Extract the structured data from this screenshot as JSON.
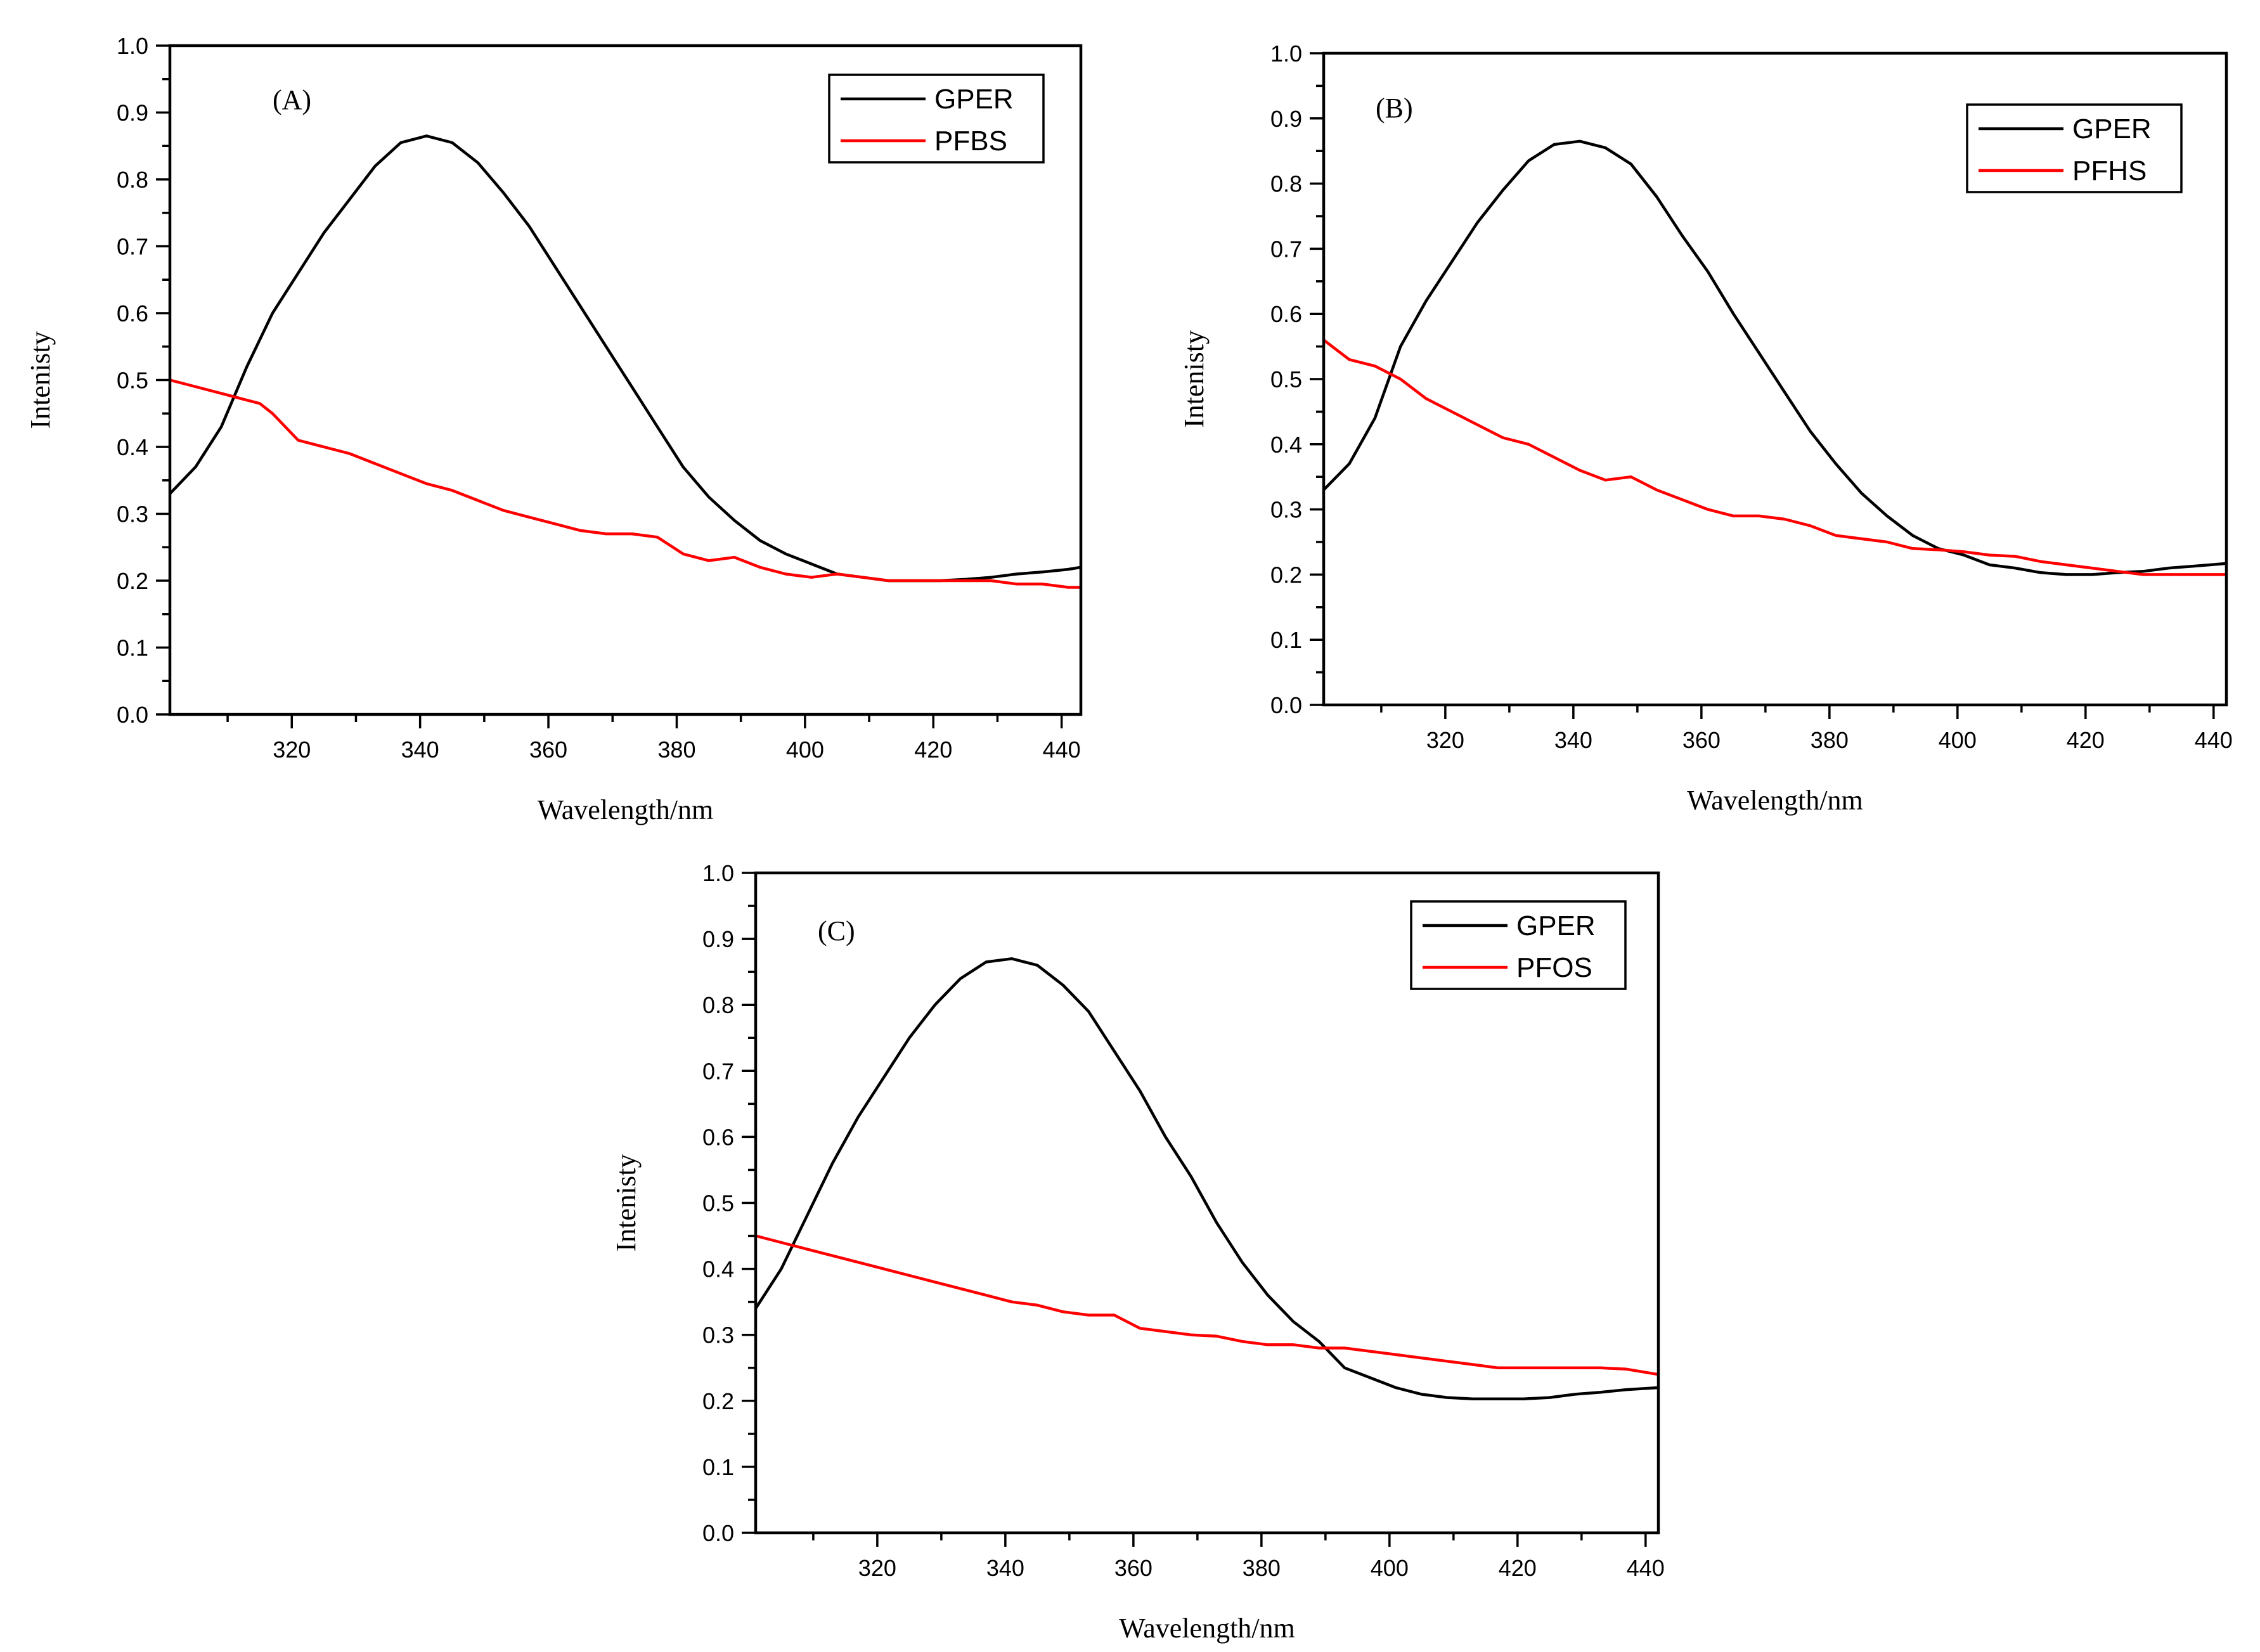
{
  "chart_data": [
    {
      "type": "line",
      "panel": "(A)",
      "xlabel": "Wavelength/nm",
      "ylabel": "Intenisty",
      "xlim": [
        301,
        443
      ],
      "ylim": [
        0.0,
        1.0
      ],
      "xticks": [
        320,
        340,
        360,
        380,
        400,
        420,
        440
      ],
      "yticks": [
        "0.0",
        "0.1",
        "0.2",
        "0.3",
        "0.4",
        "0.5",
        "0.6",
        "0.7",
        "0.8",
        "0.9",
        "1.0"
      ],
      "legend_position": "top-right",
      "series": [
        {
          "name": "GPER",
          "color": "#000000",
          "x": [
            301,
            305,
            309,
            313,
            317,
            321,
            325,
            329,
            333,
            337,
            341,
            345,
            349,
            353,
            357,
            361,
            365,
            369,
            373,
            377,
            381,
            385,
            389,
            393,
            397,
            401,
            405,
            409,
            413,
            417,
            421,
            425,
            429,
            433,
            437,
            441,
            443
          ],
          "y": [
            0.33,
            0.37,
            0.43,
            0.52,
            0.6,
            0.66,
            0.72,
            0.77,
            0.82,
            0.855,
            0.865,
            0.855,
            0.825,
            0.78,
            0.73,
            0.67,
            0.61,
            0.55,
            0.49,
            0.43,
            0.37,
            0.325,
            0.29,
            0.26,
            0.24,
            0.225,
            0.21,
            0.205,
            0.2,
            0.2,
            0.2,
            0.202,
            0.205,
            0.21,
            0.213,
            0.217,
            0.22
          ]
        },
        {
          "name": "PFBS",
          "color": "#ff0000",
          "x": [
            301,
            305,
            309,
            313,
            315,
            317,
            319,
            321,
            325,
            329,
            333,
            337,
            341,
            345,
            349,
            353,
            357,
            361,
            365,
            369,
            373,
            377,
            381,
            385,
            389,
            393,
            397,
            401,
            405,
            409,
            413,
            417,
            421,
            425,
            429,
            433,
            437,
            441,
            443
          ],
          "y": [
            0.5,
            0.49,
            0.48,
            0.47,
            0.465,
            0.45,
            0.43,
            0.41,
            0.4,
            0.39,
            0.375,
            0.36,
            0.345,
            0.335,
            0.32,
            0.305,
            0.295,
            0.285,
            0.275,
            0.27,
            0.27,
            0.265,
            0.24,
            0.23,
            0.235,
            0.22,
            0.21,
            0.205,
            0.21,
            0.205,
            0.2,
            0.2,
            0.2,
            0.2,
            0.2,
            0.195,
            0.195,
            0.19,
            0.19
          ]
        }
      ]
    },
    {
      "type": "line",
      "panel": "(B)",
      "xlabel": "Wavelength/nm",
      "ylabel": "Intenisty",
      "xlim": [
        301,
        442
      ],
      "ylim": [
        0.0,
        1.0
      ],
      "xticks": [
        320,
        340,
        360,
        380,
        400,
        420,
        440
      ],
      "yticks": [
        "0.0",
        "0.1",
        "0.2",
        "0.3",
        "0.4",
        "0.5",
        "0.6",
        "0.7",
        "0.8",
        "0.9",
        "1.0"
      ],
      "legend_position": "top-right",
      "series": [
        {
          "name": "GPER",
          "color": "#000000",
          "x": [
            301,
            305,
            309,
            313,
            317,
            321,
            325,
            329,
            333,
            337,
            341,
            345,
            349,
            353,
            357,
            361,
            365,
            369,
            373,
            377,
            381,
            385,
            389,
            393,
            397,
            401,
            405,
            409,
            413,
            417,
            421,
            425,
            429,
            433,
            437,
            442
          ],
          "y": [
            0.33,
            0.37,
            0.44,
            0.55,
            0.62,
            0.68,
            0.74,
            0.79,
            0.835,
            0.86,
            0.865,
            0.855,
            0.83,
            0.78,
            0.72,
            0.665,
            0.6,
            0.54,
            0.48,
            0.42,
            0.37,
            0.325,
            0.29,
            0.26,
            0.24,
            0.23,
            0.215,
            0.21,
            0.203,
            0.2,
            0.2,
            0.203,
            0.205,
            0.21,
            0.213,
            0.217
          ]
        },
        {
          "name": "PFHS",
          "color": "#ff0000",
          "x": [
            301,
            305,
            309,
            313,
            317,
            321,
            325,
            329,
            333,
            337,
            341,
            345,
            349,
            353,
            357,
            361,
            365,
            369,
            373,
            377,
            381,
            385,
            389,
            393,
            397,
            401,
            405,
            409,
            413,
            417,
            421,
            425,
            429,
            433,
            437,
            442
          ],
          "y": [
            0.56,
            0.53,
            0.52,
            0.5,
            0.47,
            0.45,
            0.43,
            0.41,
            0.4,
            0.38,
            0.36,
            0.345,
            0.35,
            0.33,
            0.315,
            0.3,
            0.29,
            0.29,
            0.285,
            0.275,
            0.26,
            0.255,
            0.25,
            0.24,
            0.238,
            0.235,
            0.23,
            0.228,
            0.22,
            0.215,
            0.21,
            0.205,
            0.2,
            0.2,
            0.2,
            0.2
          ]
        }
      ]
    },
    {
      "type": "line",
      "panel": "(C)",
      "xlabel": "Wavelength/nm",
      "ylabel": "Intenisty",
      "xlim": [
        301,
        442
      ],
      "ylim": [
        0.0,
        1.0
      ],
      "xticks": [
        320,
        340,
        360,
        380,
        400,
        420,
        440
      ],
      "yticks": [
        "0.0",
        "0.1",
        "0.2",
        "0.3",
        "0.4",
        "0.5",
        "0.6",
        "0.7",
        "0.8",
        "0.9",
        "1.0"
      ],
      "legend_position": "top-right",
      "series": [
        {
          "name": "GPER",
          "color": "#000000",
          "x": [
            301,
            305,
            309,
            313,
            317,
            321,
            325,
            329,
            333,
            337,
            341,
            345,
            349,
            353,
            357,
            361,
            365,
            369,
            373,
            377,
            381,
            385,
            389,
            391,
            393,
            397,
            401,
            405,
            409,
            413,
            417,
            421,
            425,
            429,
            433,
            437,
            442
          ],
          "y": [
            0.34,
            0.4,
            0.48,
            0.56,
            0.63,
            0.69,
            0.75,
            0.8,
            0.84,
            0.865,
            0.87,
            0.86,
            0.83,
            0.79,
            0.73,
            0.67,
            0.6,
            0.54,
            0.47,
            0.41,
            0.36,
            0.32,
            0.29,
            0.27,
            0.25,
            0.235,
            0.22,
            0.21,
            0.205,
            0.203,
            0.203,
            0.203,
            0.205,
            0.21,
            0.213,
            0.217,
            0.22
          ]
        },
        {
          "name": "PFOS",
          "color": "#ff0000",
          "x": [
            301,
            305,
            309,
            313,
            317,
            321,
            325,
            329,
            333,
            337,
            341,
            345,
            349,
            353,
            357,
            361,
            365,
            369,
            373,
            377,
            381,
            385,
            389,
            393,
            397,
            401,
            405,
            409,
            413,
            417,
            421,
            425,
            429,
            433,
            437,
            442
          ],
          "y": [
            0.45,
            0.44,
            0.43,
            0.42,
            0.41,
            0.4,
            0.39,
            0.38,
            0.37,
            0.36,
            0.35,
            0.345,
            0.335,
            0.33,
            0.33,
            0.31,
            0.305,
            0.3,
            0.298,
            0.29,
            0.285,
            0.285,
            0.28,
            0.28,
            0.275,
            0.27,
            0.265,
            0.26,
            0.255,
            0.25,
            0.25,
            0.25,
            0.25,
            0.25,
            0.248,
            0.24
          ]
        }
      ]
    }
  ]
}
